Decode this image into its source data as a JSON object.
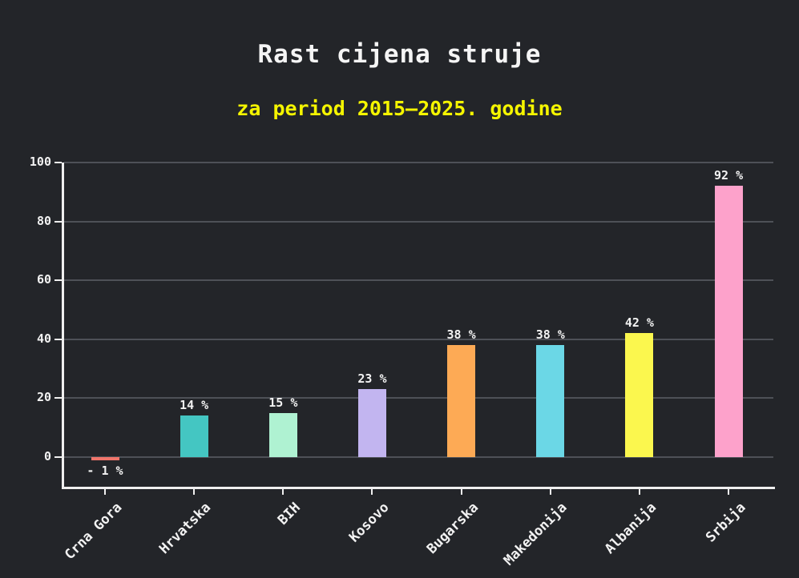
{
  "header": {
    "title": "Rast cijena struje",
    "subtitle": "za period 2015–2025. godine"
  },
  "colors": {
    "background": "#232529",
    "title_text": "#f5f5f5",
    "subtitle_text": "#f5f500",
    "axis": "#efefef",
    "gridline": "#4e5157",
    "tick_label_text": "#f2f2f2"
  },
  "chart_data": {
    "type": "bar",
    "title": "Rast cijena struje",
    "subtitle": "za period 2015–2025. godine",
    "categories": [
      "Crna Gora",
      "Hrvatska",
      "BIH",
      "Kosovo",
      "Bugarska",
      "Makedonija",
      "Albanija",
      "Srbija"
    ],
    "values": [
      -1,
      14,
      15,
      23,
      38,
      38,
      42,
      92
    ],
    "value_labels": [
      "- 1 %",
      "14 %",
      "15 %",
      "23 %",
      "38 %",
      "38 %",
      "42 %",
      "92 %"
    ],
    "bar_colors": [
      "#f0756b",
      "#44c6c2",
      "#aff2d2",
      "#c2b5f0",
      "#fdaa55",
      "#6bd7e6",
      "#fbf74e",
      "#fda2cb"
    ],
    "xlabel": "",
    "ylabel": "",
    "yticks": [
      0,
      20,
      40,
      60,
      80,
      100
    ],
    "ylim": [
      -10.3,
      100
    ],
    "grid": true,
    "legend": "none"
  }
}
